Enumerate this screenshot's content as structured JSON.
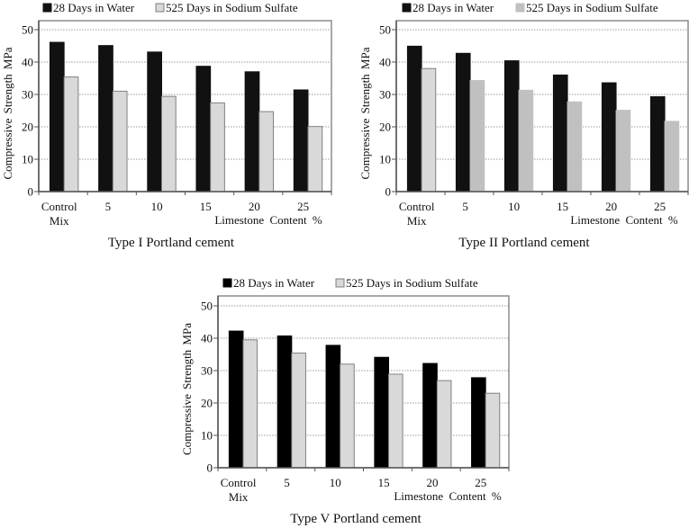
{
  "chart_data": [
    {
      "type": "bar",
      "title": "Type I Portland cement",
      "xlabel": "Limestone Content %",
      "ylabel": "Compressive Strength MPa",
      "ylim": [
        0,
        50
      ],
      "yticks": [
        "0",
        "10",
        "20",
        "30",
        "40",
        "50"
      ],
      "ytick_values": [
        0,
        10,
        20,
        30,
        40,
        50
      ],
      "grid": true,
      "legend": "top-center",
      "categories": [
        [
          "Control",
          "Mix"
        ],
        [
          "5"
        ],
        [
          "10"
        ],
        [
          "15"
        ],
        [
          "20"
        ],
        [
          "25"
        ]
      ],
      "series": [
        {
          "name": "28 Days in Water",
          "color": "#111111",
          "stroke": "#111111",
          "values": [
            46.1,
            45.1,
            43.1,
            38.7,
            37.0,
            31.4
          ]
        },
        {
          "name": "525 Days in Sodium Sulfate",
          "color": "#d9d9d9",
          "stroke": "#808080",
          "values": [
            35.4,
            31.0,
            29.4,
            27.4,
            24.7,
            20.1
          ]
        }
      ]
    },
    {
      "type": "bar",
      "title": "Type II Portland cement",
      "xlabel": "Limestone Content %",
      "ylabel": "Compressive Strength MPa",
      "ylim": [
        0,
        50
      ],
      "yticks": [
        "0",
        "10",
        "20",
        "30",
        "40",
        "50"
      ],
      "ytick_values": [
        0,
        10,
        20,
        30,
        40,
        50
      ],
      "grid": true,
      "legend": "top-center",
      "categories": [
        [
          "Control",
          "Mix"
        ],
        [
          "5"
        ],
        [
          "10"
        ],
        [
          "15"
        ],
        [
          "20"
        ],
        [
          "25"
        ]
      ],
      "series": [
        {
          "name": "28 Days in Water",
          "color": "#111111",
          "stroke": "#111111",
          "values": [
            44.9,
            42.7,
            40.4,
            36.0,
            33.6,
            29.3
          ]
        },
        {
          "name": "525 Days in Sodium Sulfate",
          "color": "#c0c0c0",
          "stroke": "#c0c0c0",
          "first_color": "#d9d9d9",
          "first_stroke": "#808080",
          "values": [
            38.0,
            34.3,
            31.3,
            27.7,
            25.1,
            21.7
          ]
        }
      ]
    },
    {
      "type": "bar",
      "title": "Type V Portland cement",
      "xlabel": "Limestone Content %",
      "ylabel": "Compressive Strength MPa",
      "ylim": [
        0,
        50
      ],
      "yticks": [
        "0",
        "10",
        "20",
        "30",
        "40",
        "50"
      ],
      "ytick_values": [
        0,
        10,
        20,
        30,
        40,
        50
      ],
      "grid": true,
      "legend": "top-center",
      "categories": [
        [
          "Control",
          "Mix"
        ],
        [
          "5"
        ],
        [
          "10"
        ],
        [
          "15"
        ],
        [
          "20"
        ],
        [
          "25"
        ]
      ],
      "series": [
        {
          "name": "28 Days in Water",
          "color": "#000000",
          "stroke": "#000000",
          "values": [
            42.2,
            40.7,
            37.8,
            34.1,
            32.2,
            27.8
          ]
        },
        {
          "name": "525 Days in Sodium Sulfate",
          "color": "#d9d9d9",
          "stroke": "#808080",
          "values": [
            39.5,
            35.4,
            32.0,
            28.9,
            26.9,
            23.0
          ]
        }
      ]
    }
  ]
}
